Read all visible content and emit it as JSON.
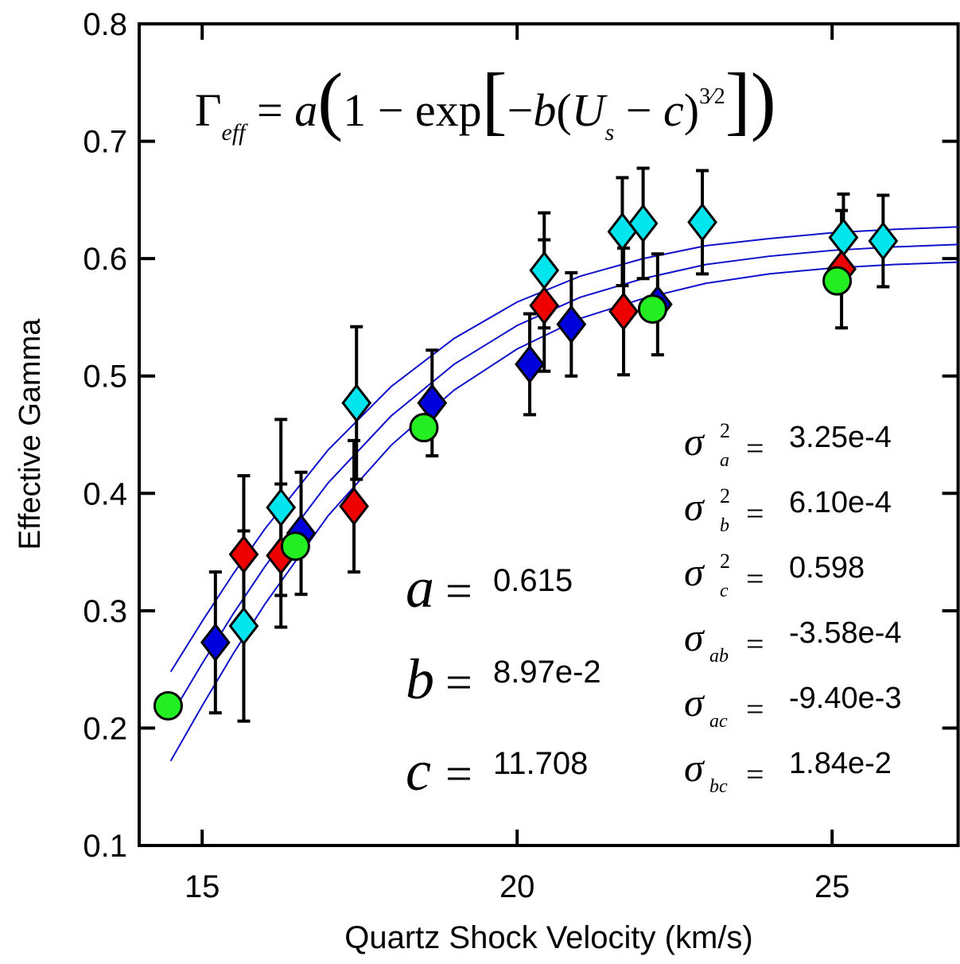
{
  "chart_data": {
    "type": "scatter",
    "xlabel": "Quartz Shock Velocity (km/s)",
    "ylabel": "Effective Gamma",
    "xlim": [
      14,
      27
    ],
    "xticks": [
      15,
      20,
      25
    ],
    "ylim": [
      0.1,
      0.8
    ],
    "yticks": [
      0.1,
      0.2,
      0.3,
      0.4,
      0.5,
      0.6,
      0.7,
      0.8
    ],
    "series": [
      {
        "color": "#00e5ee",
        "marker": "diamond",
        "x": [
          15.66,
          16.25,
          17.45,
          20.43,
          21.67,
          22.0,
          22.94,
          25.18,
          25.81
        ],
        "values": [
          0.287,
          0.388,
          0.477,
          0.59,
          0.623,
          0.63,
          0.631,
          0.618,
          0.615
        ],
        "errors": [
          0.081,
          0.075,
          0.065,
          0.049,
          0.046,
          0.047,
          0.044,
          0.037,
          0.039
        ]
      },
      {
        "color": "#ee0000",
        "marker": "diamond",
        "x": [
          15.66,
          16.25,
          17.41,
          20.43,
          21.69,
          25.15
        ],
        "values": [
          0.348,
          0.347,
          0.389,
          0.56,
          0.555,
          0.591
        ],
        "errors": [
          0.067,
          0.061,
          0.056,
          0.056,
          0.054,
          0.05
        ]
      },
      {
        "color": "#0000dd",
        "marker": "diamond",
        "x": [
          15.21,
          16.57,
          18.65,
          20.2,
          20.86,
          22.23
        ],
        "values": [
          0.273,
          0.366,
          0.477,
          0.51,
          0.544,
          0.561
        ],
        "errors": [
          0.06,
          0.052,
          0.045,
          0.043,
          0.044,
          0.043
        ]
      },
      {
        "color": "#22ee22",
        "marker": "circle",
        "x": [
          14.46,
          16.48,
          18.52,
          22.15,
          25.08
        ],
        "values": [
          0.219,
          0.355,
          0.456,
          0.557,
          0.581
        ]
      }
    ],
    "fit_curves": {
      "color": "#1010cc",
      "x": [
        14.5,
        15,
        15.5,
        16,
        17,
        18,
        19,
        20,
        21,
        22,
        23,
        24,
        25,
        26,
        27
      ],
      "lines": [
        [
          0.248,
          0.291,
          0.332,
          0.37,
          0.437,
          0.491,
          0.532,
          0.563,
          0.585,
          0.6,
          0.611,
          0.617,
          0.622,
          0.625,
          0.627
        ],
        [
          0.21,
          0.255,
          0.298,
          0.338,
          0.409,
          0.466,
          0.51,
          0.543,
          0.567,
          0.583,
          0.595,
          0.602,
          0.607,
          0.61,
          0.612
        ],
        [
          0.172,
          0.219,
          0.264,
          0.306,
          0.381,
          0.441,
          0.488,
          0.523,
          0.549,
          0.566,
          0.579,
          0.587,
          0.592,
          0.595,
          0.597
        ]
      ]
    },
    "formula": [
      {
        "text": "Γ"
      },
      {
        "text": "eff",
        "role": "sub",
        "italic": true
      },
      {
        "text": " = "
      },
      {
        "text": "a",
        "italic": true
      },
      {
        "text": "(",
        "role": "big"
      },
      {
        "text": "1 − exp"
      },
      {
        "text": "[",
        "role": "big"
      },
      {
        "text": "−"
      },
      {
        "text": "b",
        "italic": true
      },
      {
        "text": "("
      },
      {
        "text": "U",
        "italic": true
      },
      {
        "text": "s",
        "role": "sub",
        "italic": true
      },
      {
        "text": " − "
      },
      {
        "text": "c",
        "italic": true
      },
      {
        "text": ")"
      },
      {
        "text": "3⁄2",
        "role": "sup"
      },
      {
        "text": "]",
        "role": "big"
      },
      {
        "text": ")",
        "role": "big"
      }
    ],
    "equals": "=",
    "params": [
      {
        "symbol": "a",
        "value": "0.615"
      },
      {
        "symbol": "b",
        "value": "8.97e-2"
      },
      {
        "symbol": "c",
        "value": "11.708"
      }
    ],
    "covariances": [
      {
        "symbol": "σ",
        "sub": "a",
        "sup": "2",
        "value": "3.25e-4"
      },
      {
        "symbol": "σ",
        "sub": "b",
        "sup": "2",
        "value": "6.10e-4"
      },
      {
        "symbol": "σ",
        "sub": "c",
        "sup": "2",
        "value": "0.598"
      },
      {
        "symbol": "σ",
        "sub": "ab",
        "value": "-3.58e-4"
      },
      {
        "symbol": "σ",
        "sub": "ac",
        "value": "-9.40e-3"
      },
      {
        "symbol": "σ",
        "sub": "bc",
        "value": "1.84e-2"
      }
    ]
  }
}
